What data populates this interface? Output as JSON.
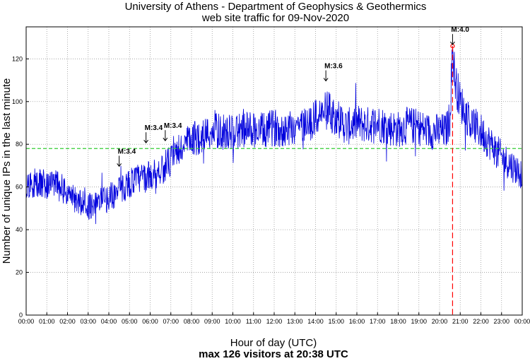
{
  "chart_data": {
    "type": "line",
    "title": "University of Athens - Department of Geophysics & Geothermics",
    "subtitle": "web site traffic for 09-Nov-2020",
    "xlabel": "Hour of day (UTC)",
    "ylabel": "Number of unique IPs in the last minute",
    "footer": "max 126 visitors at 20:38 UTC",
    "xlim": [
      0,
      24
    ],
    "ylim": [
      0,
      135
    ],
    "x_ticks": [
      "00:00",
      "01:00",
      "02:00",
      "03:00",
      "04:00",
      "05:00",
      "06:00",
      "07:00",
      "08:00",
      "09:00",
      "10:00",
      "11:00",
      "12:00",
      "13:00",
      "14:00",
      "15:00",
      "16:00",
      "17:00",
      "18:00",
      "19:00",
      "20:00",
      "21:00",
      "22:00",
      "23:00",
      "00:00"
    ],
    "y_ticks": [
      "0",
      "20",
      "40",
      "60",
      "80",
      "100",
      "120"
    ],
    "y_tick_values": [
      0,
      20,
      40,
      60,
      80,
      100,
      120
    ],
    "grid": true,
    "colors": {
      "series": "#0000dd",
      "mean": "#33cc33",
      "max": "#ff0000"
    },
    "series": [
      {
        "name": "unique IPs",
        "x": [
          0,
          0.5,
          1,
          1.5,
          2,
          2.5,
          3,
          3.5,
          4,
          4.5,
          5,
          5.5,
          6,
          6.5,
          7,
          7.5,
          8,
          8.5,
          9,
          9.5,
          10,
          10.5,
          11,
          11.5,
          12,
          12.5,
          13,
          13.5,
          14,
          14.5,
          15,
          15.5,
          16,
          16.5,
          17,
          17.5,
          18,
          18.5,
          19,
          19.5,
          20,
          20.3,
          20.5,
          20.63,
          20.75,
          21,
          21.5,
          22,
          22.5,
          23,
          23.5,
          24
        ],
        "values": [
          62,
          62,
          61,
          61,
          57,
          53,
          51,
          53,
          55,
          58,
          62,
          64,
          65,
          68,
          72,
          78,
          82,
          84,
          86,
          86,
          85,
          87,
          87,
          86,
          88,
          87,
          89,
          89,
          92,
          96,
          93,
          88,
          90,
          89,
          90,
          88,
          87,
          89,
          88,
          86,
          86,
          86,
          92,
          126,
          110,
          100,
          90,
          86,
          80,
          74,
          70,
          66
        ]
      }
    ],
    "mean_value": 78,
    "max": {
      "time": 20.63,
      "value": 126,
      "label": "max 126 visitors at 20:38 UTC"
    },
    "annotations": [
      {
        "label": "M:3.4",
        "x": 4.5,
        "y": 69
      },
      {
        "label": "M:3.4",
        "x": 5.8,
        "y": 80
      },
      {
        "label": "M:3.4",
        "x": 6.73,
        "y": 81
      },
      {
        "label": "M:3.6",
        "x": 14.5,
        "y": 109
      },
      {
        "label": "M:4.0",
        "x": 20.63,
        "y": 126
      }
    ]
  }
}
